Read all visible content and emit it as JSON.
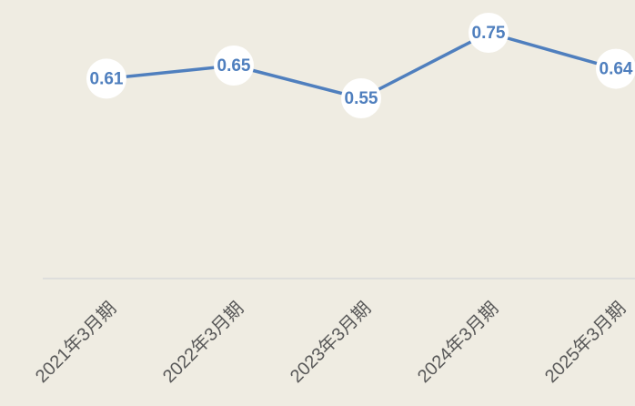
{
  "chart_data": {
    "type": "line",
    "categories": [
      "2021年3月期",
      "2022年3月期",
      "2023年3月期",
      "2024年3月期",
      "2025年3月期"
    ],
    "series": [
      {
        "name": null,
        "color": "#4f7fbe",
        "values": [
          0.61,
          0.65,
          0.55,
          0.75,
          0.64
        ]
      }
    ],
    "ylim": [
      0,
      0.85
    ]
  }
}
